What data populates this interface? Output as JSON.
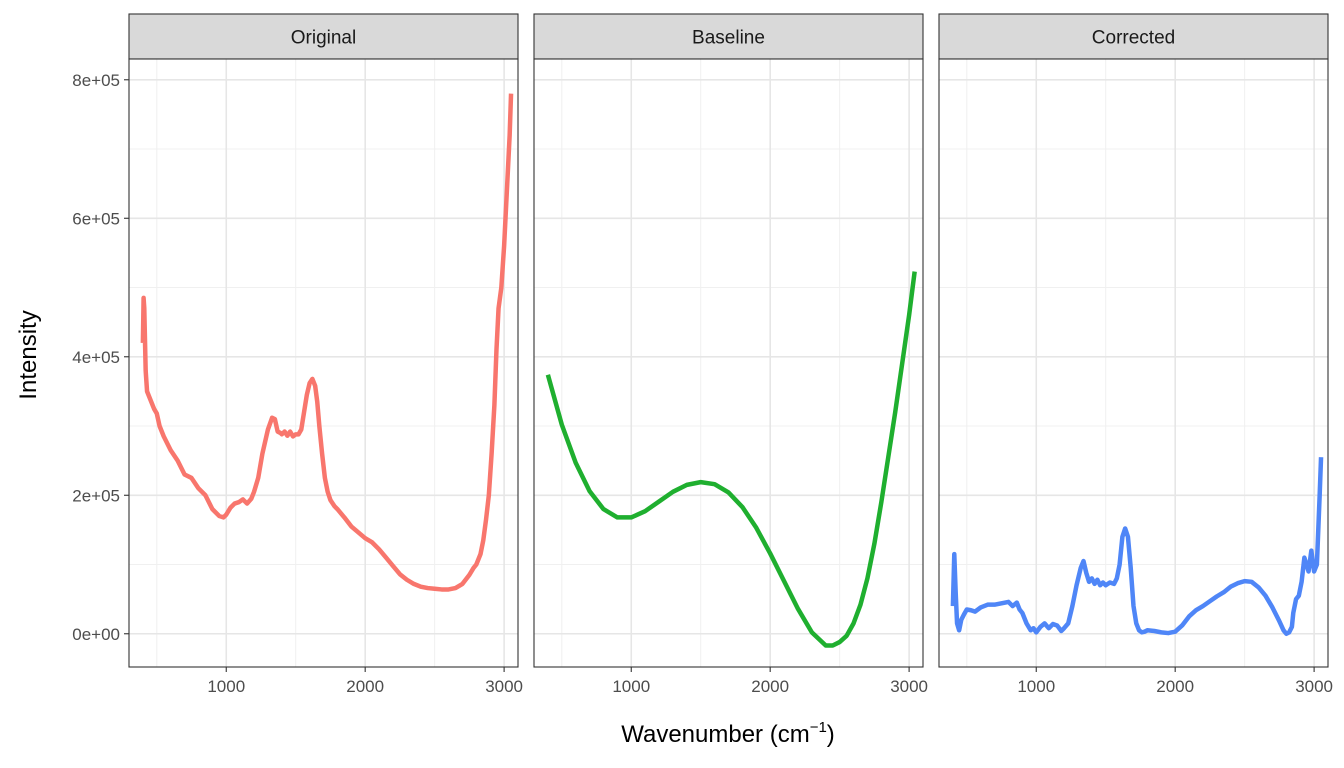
{
  "chart_data": {
    "type": "line",
    "xlabel": "Wavenumber (cm",
    "xlabel_superscript": "−1",
    "xlabel_suffix": ")",
    "ylabel": "Intensity",
    "xlim": [
      300,
      3100
    ],
    "ylim": [
      -48000,
      830000
    ],
    "x_ticks": [
      1000,
      2000,
      3000
    ],
    "x_tick_labels": [
      "1000",
      "2000",
      "3000"
    ],
    "y_ticks": [
      0,
      200000,
      400000,
      600000,
      800000
    ],
    "y_tick_labels": [
      "0e+00",
      "2e+05",
      "4e+05",
      "6e+05",
      "8e+05"
    ],
    "grid": true,
    "legend": "none",
    "panels": [
      {
        "title": "Original",
        "color": "#F8766D",
        "x": [
          400,
          405,
          410,
          420,
          430,
          450,
          480,
          500,
          520,
          550,
          600,
          650,
          700,
          750,
          800,
          850,
          900,
          950,
          980,
          1000,
          1030,
          1060,
          1090,
          1120,
          1150,
          1180,
          1200,
          1230,
          1260,
          1300,
          1330,
          1350,
          1370,
          1390,
          1400,
          1420,
          1440,
          1460,
          1480,
          1500,
          1520,
          1540,
          1560,
          1580,
          1600,
          1620,
          1640,
          1655,
          1670,
          1690,
          1710,
          1730,
          1750,
          1780,
          1800,
          1850,
          1900,
          2000,
          2050,
          2100,
          2150,
          2200,
          2250,
          2300,
          2350,
          2400,
          2450,
          2500,
          2550,
          2600,
          2650,
          2700,
          2750,
          2780,
          2800,
          2830,
          2850,
          2870,
          2890,
          2910,
          2930,
          2945,
          2960,
          2980,
          3000,
          3020,
          3040,
          3050
        ],
        "y": [
          420000,
          485000,
          470000,
          380000,
          350000,
          340000,
          325000,
          318000,
          300000,
          285000,
          265000,
          250000,
          230000,
          225000,
          210000,
          200000,
          180000,
          170000,
          168000,
          172000,
          182000,
          188000,
          190000,
          194000,
          188000,
          195000,
          205000,
          225000,
          260000,
          295000,
          312000,
          310000,
          292000,
          290000,
          288000,
          292000,
          286000,
          292000,
          285000,
          288000,
          288000,
          295000,
          320000,
          345000,
          362000,
          368000,
          358000,
          335000,
          300000,
          260000,
          225000,
          205000,
          193000,
          184000,
          180000,
          168000,
          155000,
          138000,
          132000,
          122000,
          110000,
          98000,
          86000,
          78000,
          72000,
          68000,
          66000,
          65000,
          64000,
          64000,
          66000,
          72000,
          85000,
          95000,
          100000,
          115000,
          135000,
          165000,
          200000,
          260000,
          330000,
          410000,
          470000,
          500000,
          560000,
          640000,
          720000,
          780000
        ]
      },
      {
        "title": "Baseline",
        "color": "#1FAF2F",
        "x": [
          400,
          500,
          600,
          700,
          800,
          900,
          1000,
          1100,
          1200,
          1300,
          1400,
          1500,
          1600,
          1700,
          1800,
          1900,
          2000,
          2100,
          2200,
          2300,
          2400,
          2450,
          2500,
          2550,
          2600,
          2650,
          2700,
          2750,
          2800,
          2850,
          2900,
          2950,
          3000,
          3040
        ],
        "y": [
          374000,
          302000,
          247000,
          206000,
          180000,
          168000,
          168000,
          177000,
          191000,
          205000,
          215000,
          219000,
          216000,
          204000,
          183000,
          153000,
          116000,
          76000,
          36000,
          2000,
          -17000,
          -17000,
          -12000,
          -3000,
          15000,
          42000,
          80000,
          130000,
          190000,
          255000,
          320000,
          390000,
          460000,
          523000
        ]
      },
      {
        "title": "Corrected",
        "color": "#4F86F7",
        "x": [
          400,
          410,
          420,
          430,
          445,
          460,
          480,
          500,
          530,
          560,
          600,
          650,
          700,
          750,
          800,
          830,
          860,
          880,
          900,
          930,
          960,
          980,
          1000,
          1030,
          1060,
          1090,
          1120,
          1150,
          1180,
          1200,
          1230,
          1260,
          1290,
          1320,
          1340,
          1360,
          1380,
          1400,
          1420,
          1440,
          1460,
          1480,
          1500,
          1530,
          1560,
          1580,
          1600,
          1620,
          1640,
          1660,
          1680,
          1700,
          1720,
          1740,
          1760,
          1780,
          1800,
          1850,
          1900,
          1950,
          2000,
          2050,
          2100,
          2150,
          2200,
          2250,
          2300,
          2350,
          2400,
          2450,
          2500,
          2550,
          2600,
          2650,
          2700,
          2750,
          2780,
          2800,
          2820,
          2840,
          2850,
          2870,
          2890,
          2910,
          2930,
          2945,
          2960,
          2980,
          3000,
          3010,
          3020,
          3030,
          3040,
          3050
        ],
        "y": [
          40000,
          115000,
          60000,
          15000,
          5000,
          20000,
          28000,
          35000,
          34000,
          32000,
          38000,
          42000,
          42000,
          44000,
          46000,
          40000,
          45000,
          35000,
          30000,
          15000,
          5000,
          8000,
          2000,
          10000,
          15000,
          8000,
          14000,
          12000,
          4000,
          8000,
          15000,
          40000,
          70000,
          95000,
          105000,
          88000,
          75000,
          80000,
          72000,
          78000,
          70000,
          74000,
          70000,
          74000,
          72000,
          80000,
          100000,
          140000,
          152000,
          140000,
          95000,
          40000,
          15000,
          5000,
          2000,
          3000,
          5000,
          4000,
          2000,
          1000,
          3000,
          12000,
          25000,
          34000,
          40000,
          47000,
          54000,
          60000,
          68000,
          73000,
          76000,
          75000,
          67000,
          55000,
          38000,
          18000,
          5000,
          0,
          2000,
          10000,
          30000,
          50000,
          55000,
          75000,
          110000,
          100000,
          90000,
          120000,
          90000,
          95000,
          100000,
          150000,
          200000,
          255000
        ]
      }
    ]
  }
}
